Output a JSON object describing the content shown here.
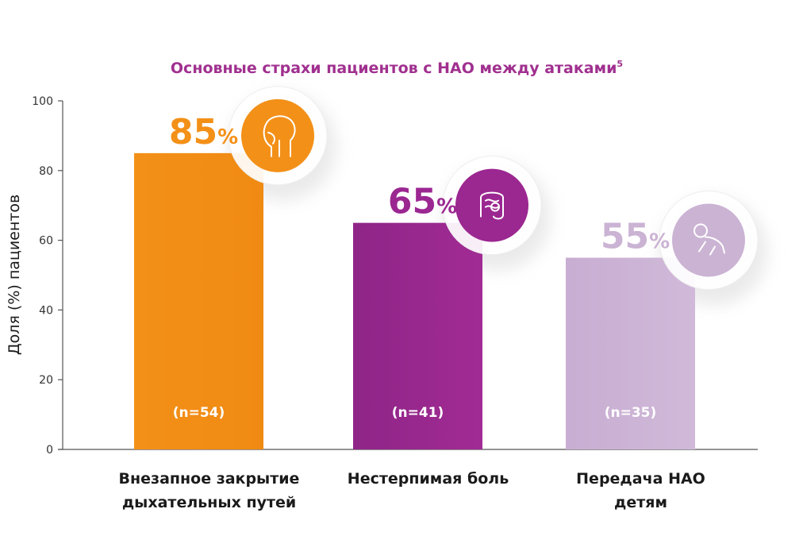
{
  "chart_data": {
    "type": "bar",
    "title": "Основные страхи пациентов с НАО между атаками",
    "title_superscript": "5",
    "ylabel": "Доля (%) пациентов",
    "xlabel": "",
    "ylim": [
      0,
      100
    ],
    "yticks": [
      0,
      20,
      40,
      60,
      80,
      100
    ],
    "grid": false,
    "categories": [
      "Внезапное закрытие дыхательных путей",
      "Нестерпимая боль",
      "Передача НАО детям"
    ],
    "category_lines": [
      [
        "Внезапное закрытие",
        "дыхательных путей"
      ],
      [
        "Нестерпимая боль"
      ],
      [
        "Передача НАО",
        "детям"
      ]
    ],
    "values": [
      85,
      65,
      55
    ],
    "value_labels": [
      "85",
      "65",
      "55"
    ],
    "percent_sign": "%",
    "sample_labels": [
      "(n=54)",
      "(n=41)",
      "(n=35)"
    ],
    "icons": [
      "airway-head-icon",
      "intestine-pain-icon",
      "crawling-baby-icon"
    ],
    "colors": {
      "title": "#a0308f",
      "bars": [
        "#f39018",
        "#9b2791",
        "#cbb3d4"
      ],
      "value_text": [
        "#f39018",
        "#9b2791",
        "#cbb3d4"
      ],
      "axis": "#555555"
    }
  }
}
